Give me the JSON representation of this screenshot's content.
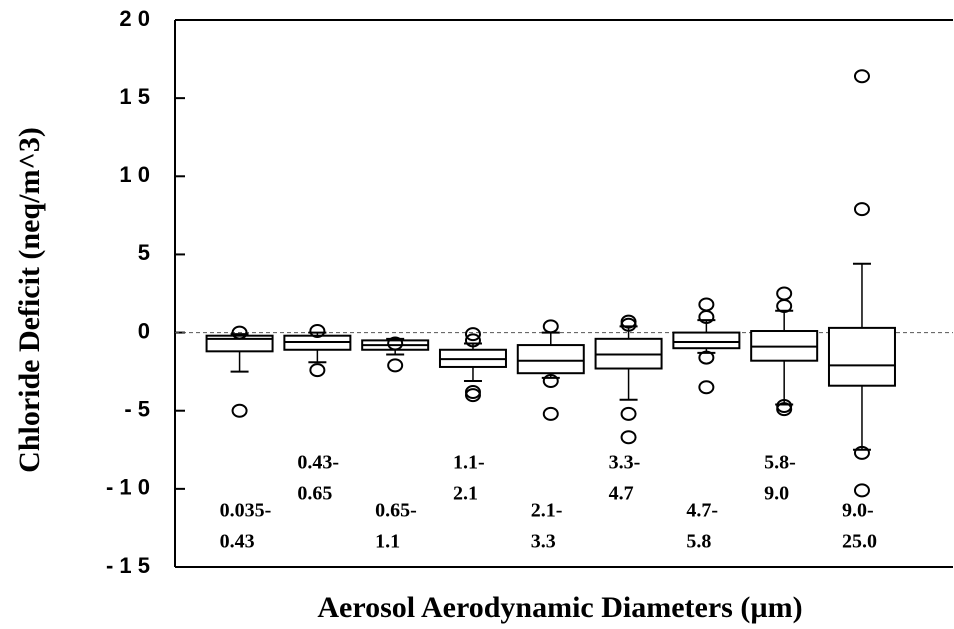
{
  "chart_data": {
    "type": "box",
    "ylabel": "Chloride Deficit (neq/m^3)",
    "xlabel": "Aerosol Aerodynamic Diameters (µm)",
    "categories": [
      [
        "0.035-",
        "0.43"
      ],
      [
        "0.43-",
        "0.65"
      ],
      [
        "0.65-",
        "1.1"
      ],
      [
        "1.1-",
        "2.1"
      ],
      [
        "2.1-",
        "3.3"
      ],
      [
        "3.3-",
        "4.7"
      ],
      [
        "4.7-",
        "5.8"
      ],
      [
        "5.8-",
        "9.0"
      ],
      [
        "9.0-",
        "25.0"
      ]
    ],
    "boxes": [
      {
        "min": -2.5,
        "q1": -1.2,
        "median": -0.4,
        "q3": -0.2,
        "max": -0.1,
        "outliers": [
          0,
          -5
        ]
      },
      {
        "min": -1.9,
        "q1": -1.1,
        "median": -0.6,
        "q3": -0.2,
        "max": 0,
        "outliers": [
          0.1,
          -2.4
        ]
      },
      {
        "min": -1.4,
        "q1": -1.1,
        "median": -0.8,
        "q3": -0.5,
        "max": -0.4,
        "outliers": [
          -0.7,
          -2.1
        ]
      },
      {
        "min": -3.1,
        "q1": -2.2,
        "median": -1.7,
        "q3": -1.1,
        "max": -0.7,
        "outliers": [
          -0.1,
          -0.5,
          -3.8,
          -4.0
        ]
      },
      {
        "min": -2.9,
        "q1": -2.6,
        "median": -1.8,
        "q3": -0.8,
        "max": 0,
        "outliers": [
          0.4,
          -3.1,
          -5.2
        ]
      },
      {
        "min": -4.3,
        "q1": -2.3,
        "median": -1.4,
        "q3": -0.4,
        "max": 0.4,
        "outliers": [
          0.7,
          0.5,
          -5.2,
          -6.7
        ]
      },
      {
        "min": -1.3,
        "q1": -1.0,
        "median": -0.6,
        "q3": 0,
        "max": 0.8,
        "outliers": [
          1.8,
          1.0,
          -1.6,
          -3.5
        ]
      },
      {
        "min": -4.6,
        "q1": -1.8,
        "median": -0.9,
        "q3": 0.1,
        "max": 1.4,
        "outliers": [
          2.5,
          1.7,
          -4.7,
          -4.9
        ]
      },
      {
        "min": -7.5,
        "q1": -3.4,
        "median": -2.1,
        "q3": 0.3,
        "max": 4.4,
        "outliers": [
          16.4,
          7.9,
          -7.7,
          -10.1
        ]
      }
    ],
    "ylim": [
      -15,
      20
    ],
    "yticks": [
      {
        "value": -15,
        "label": "- 1 5"
      },
      {
        "value": -10,
        "label": "- 1 0"
      },
      {
        "value": -5,
        "label": "- 5"
      },
      0,
      5,
      {
        "value": 10,
        "label": "1 0"
      },
      {
        "value": 15,
        "label": "1 5"
      },
      {
        "value": 20,
        "label": "2 0"
      }
    ],
    "zero_line": true
  }
}
